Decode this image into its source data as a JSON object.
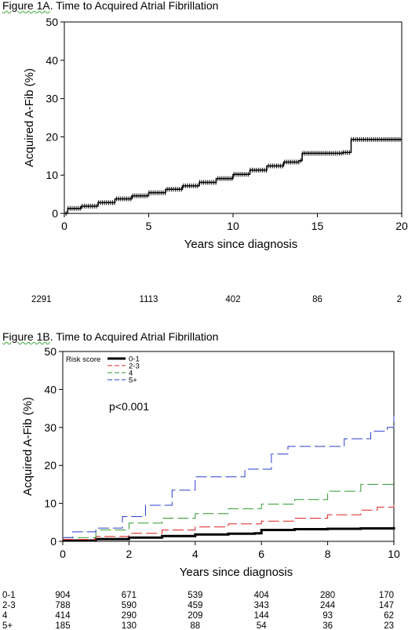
{
  "figure_a": {
    "title_prefix": "Figure 1A",
    "title_rest": ". Time to Acquired Atrial Fibrillation"
  },
  "figure_b": {
    "title_prefix": "Figure 1B",
    "title_rest": ". Time to Acquired Atrial Fibrillation"
  },
  "chart_data": [
    {
      "type": "line",
      "title": "Figure 1A. Time to Acquired Atrial Fibrillation",
      "xlabel": "Years since diagnosis",
      "ylabel": "Acquired A-Fib (%)",
      "xlim": [
        0,
        20
      ],
      "ylim": [
        0,
        50
      ],
      "x_ticks": [
        0,
        5,
        10,
        15,
        20
      ],
      "y_ticks": [
        0,
        10,
        20,
        30,
        40,
        50
      ],
      "series": [
        {
          "color": "#000000",
          "style": "solid",
          "x": [
            0,
            0.2,
            1,
            2,
            3,
            4,
            5,
            6,
            7,
            8,
            9,
            10,
            11,
            12,
            13,
            13.9,
            14.1,
            16.5,
            17,
            20
          ],
          "y": [
            0,
            1.3,
            1.9,
            2.8,
            3.8,
            4.6,
            5.4,
            6.3,
            7.2,
            8.1,
            9.1,
            10.2,
            11.3,
            12.4,
            13.4,
            13.8,
            15.7,
            15.9,
            19.3,
            19.3
          ]
        }
      ],
      "at_risk": [
        {
          "x": 0,
          "value": "2291"
        },
        {
          "x": 5,
          "value": "1113"
        },
        {
          "x": 10,
          "value": "402"
        },
        {
          "x": 15,
          "value": "86"
        },
        {
          "x": 20,
          "value": "2"
        }
      ]
    },
    {
      "type": "line",
      "title": "Figure 1B. Time to Acquired Atrial Fibrillation",
      "xlabel": "Years since diagnosis",
      "ylabel": "Acquired A-Fib (%)",
      "xlim": [
        0,
        10
      ],
      "ylim": [
        0,
        50
      ],
      "x_ticks": [
        0,
        2,
        4,
        6,
        8,
        10
      ],
      "y_ticks": [
        0,
        10,
        20,
        30,
        40,
        50
      ],
      "annotation": "p<0.001",
      "legend_title": "Risk score",
      "legend_position": "top-left",
      "series": [
        {
          "name": "0-1",
          "color": "#000000",
          "style": "solid",
          "width": 3,
          "x": [
            0,
            1,
            2,
            3,
            4,
            5,
            5.8,
            6,
            7,
            8,
            9,
            10
          ],
          "y": [
            0.2,
            0.6,
            1.0,
            1.4,
            1.8,
            2.0,
            2.1,
            3.0,
            3.2,
            3.3,
            3.4,
            3.8
          ]
        },
        {
          "name": "2-3",
          "color": "#e02020",
          "style": "dashed",
          "width": 1,
          "x": [
            0,
            1,
            2,
            3,
            4,
            5,
            6,
            7,
            8,
            9,
            9.5,
            10
          ],
          "y": [
            0.5,
            1.3,
            2.1,
            3.0,
            3.8,
            4.6,
            5.3,
            6.1,
            7.0,
            8.2,
            9.0,
            9.6
          ]
        },
        {
          "name": "4",
          "color": "#2e9a2e",
          "style": "dashed",
          "width": 1,
          "x": [
            0,
            1,
            2,
            3,
            4,
            5,
            6,
            7,
            8,
            9,
            10
          ],
          "y": [
            1.0,
            3.0,
            4.8,
            6.1,
            7.3,
            8.6,
            9.8,
            11.0,
            13.2,
            15.0,
            16.0
          ]
        },
        {
          "name": "5+",
          "color": "#2a3fcc",
          "style": "dashed",
          "width": 1,
          "x": [
            0,
            0.3,
            1,
            1.8,
            2.5,
            3.3,
            4.0,
            4.6,
            5.5,
            6.3,
            6.8,
            7.5,
            8.5,
            9.3,
            9.8,
            10
          ],
          "y": [
            1.0,
            2.5,
            3.5,
            6.5,
            9.5,
            13.5,
            17.0,
            17.0,
            19.0,
            23.0,
            25.0,
            25.0,
            27.0,
            29.0,
            30.0,
            33.0
          ]
        }
      ],
      "at_risk": {
        "x_positions": [
          0,
          2,
          4,
          6,
          8,
          10
        ],
        "rows": [
          {
            "label": "0-1",
            "values": [
              "904",
              "671",
              "539",
              "404",
              "280",
              "170"
            ]
          },
          {
            "label": "2-3",
            "values": [
              "788",
              "590",
              "459",
              "343",
              "244",
              "147"
            ]
          },
          {
            "label": "4",
            "values": [
              "414",
              "290",
              "209",
              "144",
              "93",
              "62"
            ]
          },
          {
            "label": "5+",
            "values": [
              "185",
              "130",
              "88",
              "54",
              "36",
              "23"
            ]
          }
        ]
      }
    }
  ]
}
